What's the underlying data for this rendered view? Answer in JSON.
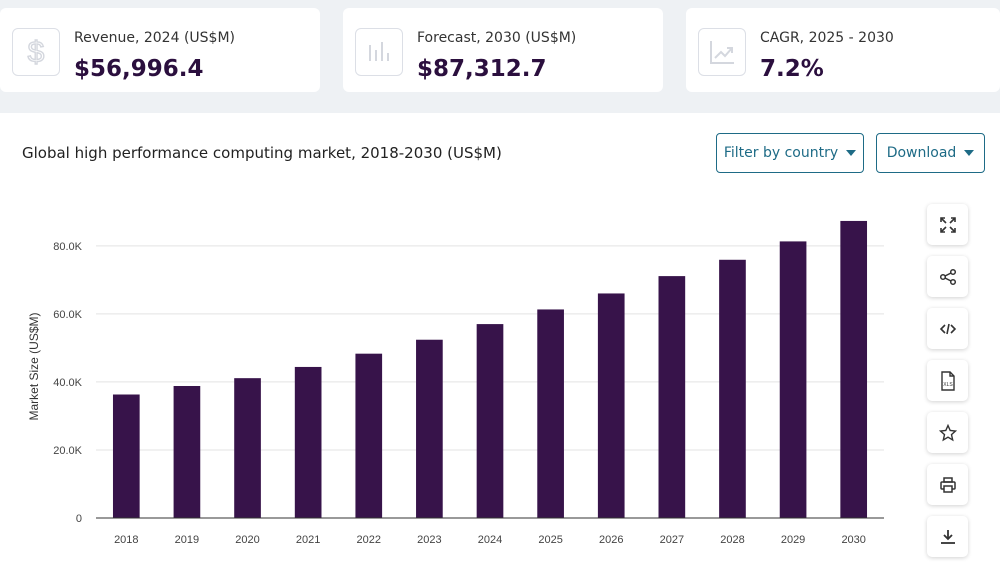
{
  "stats": [
    {
      "label": "Revenue, 2024 (US$M)",
      "value": "$56,996.4",
      "icon": "dollar-icon"
    },
    {
      "label": "Forecast, 2030 (US$M)",
      "value": "$87,312.7",
      "icon": "bar-chart-icon"
    },
    {
      "label": "CAGR, 2025 - 2030",
      "value": "7.2%",
      "icon": "trend-up-icon"
    }
  ],
  "panel": {
    "title": "Global high performance computing market, 2018-2030 (US$M)",
    "filter_label": "Filter by country",
    "download_label": "Download"
  },
  "toolbar": [
    "expand-icon",
    "share-icon",
    "embed-code-icon",
    "xls-file-icon",
    "star-icon",
    "print-icon",
    "download-icon"
  ],
  "colors": {
    "bar": "#37134a",
    "accent": "#1e6b86",
    "value_text": "#2b0f3e"
  },
  "chart_data": {
    "type": "bar",
    "title": "Global high performance computing market, 2018-2030 (US$M)",
    "xlabel": "",
    "ylabel": "Market Size (US$M)",
    "categories": [
      "2018",
      "2019",
      "2020",
      "2021",
      "2022",
      "2023",
      "2024",
      "2025",
      "2026",
      "2027",
      "2028",
      "2029",
      "2030"
    ],
    "values": [
      36300,
      38800,
      41100,
      44400,
      48300,
      52400,
      56996.4,
      61300,
      66000,
      71100,
      75900,
      81300,
      87312.7
    ],
    "yticks": [
      0,
      20000,
      40000,
      60000,
      80000
    ],
    "ytick_labels": [
      "0",
      "20.0K",
      "40.0K",
      "60.0K",
      "80.0K"
    ],
    "ylim": [
      0,
      92000
    ],
    "grid": true,
    "legend": "none"
  }
}
